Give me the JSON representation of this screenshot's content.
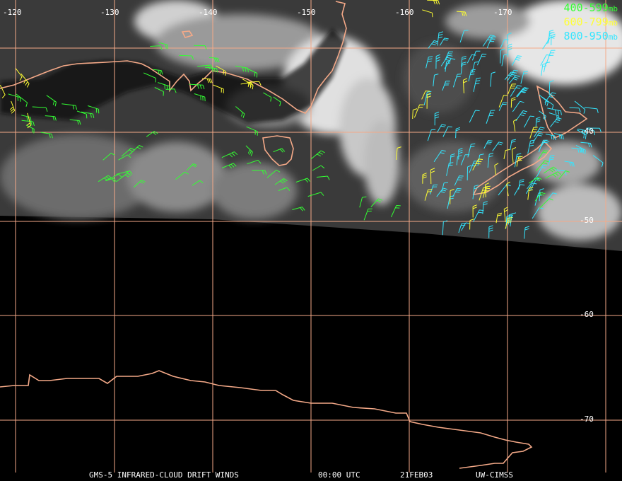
{
  "map": {
    "lon_labels": [
      "-120",
      "-130",
      "-140",
      "-150",
      "-160",
      "-170"
    ],
    "lat_labels": [
      "-40",
      "-50",
      "-60",
      "-70"
    ],
    "colors": {
      "grid": "#f4a988",
      "coast": "#f4a988",
      "wind_400_599": "#33ff33",
      "wind_600_799": "#ffff33",
      "wind_800_950": "#33e6ff",
      "clouds": "#d8d8d8",
      "background": "#000000"
    }
  },
  "legend": {
    "entries": [
      {
        "range": "400-599",
        "unit": "mb",
        "color": "#33ff33"
      },
      {
        "range": "600-799",
        "unit": "mb",
        "color": "#ffff33"
      },
      {
        "range": "800-950",
        "unit": "mb",
        "color": "#33e6ff"
      }
    ]
  },
  "footer": {
    "product": "GMS-5 INFRARED-CLOUD DRIFT WINDS",
    "time": "00:00 UTC",
    "date": "21FEB03",
    "source": "UW-CIMSS"
  }
}
